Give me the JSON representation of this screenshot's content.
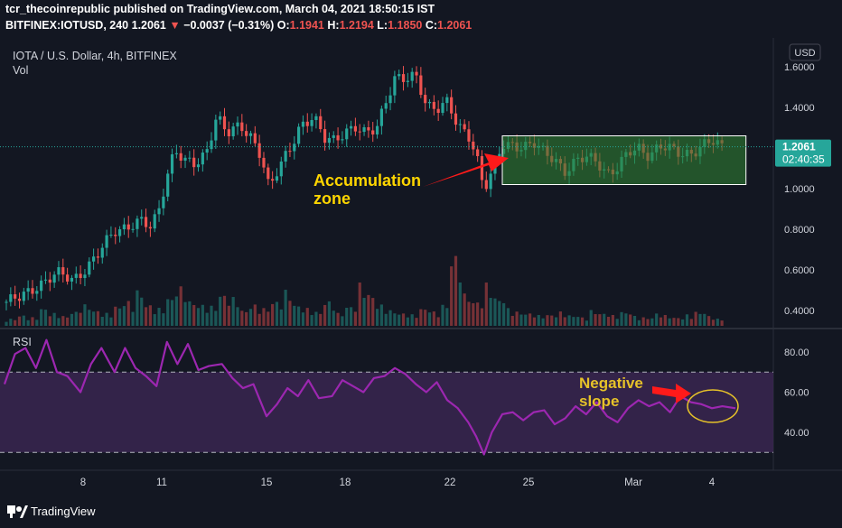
{
  "header": {
    "line1": "tcr_thecoinrepublic published on TradingView.com, March 04, 2021 18:50:15 IST",
    "symbol": "BITFINEX:IOTUSD, 240",
    "last": "1.2061",
    "change_arrow": "▼",
    "change": "−0.0037 (−0.31%)",
    "o_label": "O:",
    "o_val": "1.1941",
    "h_label": "H:",
    "h_val": "1.2194",
    "l_label": "L:",
    "l_val": "1.1850",
    "c_label": "C:",
    "c_val": "1.2061"
  },
  "pane_legend": {
    "title": "IOTA / U.S. Dollar, 4h, BITFINEX",
    "vol": "Vol",
    "rsi": "RSI"
  },
  "price_axis": {
    "currency": "USD",
    "current_price": "1.2061",
    "countdown": "02:40:35"
  },
  "annotations": {
    "accumulation_line1": "Accumulation",
    "accumulation_line2": "zone",
    "negative_line1": "Negative",
    "negative_line2": "slope"
  },
  "brand": {
    "name": "TradingView"
  },
  "colors": {
    "background": "#131722",
    "up": "#26a69a",
    "down": "#ef5350",
    "rsi_line": "#9c27b0",
    "rsi_band": "#3a2650",
    "annotation_text": "#ffd600",
    "arrow": "#ff1a1a",
    "zone_fill": "#2e7d32",
    "zone_border": "#ffffff"
  },
  "chart_data": [
    {
      "type": "candlestick",
      "title": "IOTA / U.S. Dollar, 4h, BITFINEX",
      "ylabel": "USD",
      "y_ticks": [
        1.6,
        1.4,
        1.2,
        1.0,
        0.8,
        0.6,
        0.4
      ],
      "y_tick_labels": [
        "1.6000",
        "1.4000",
        "1.2000",
        "1.0000",
        "0.8000",
        "0.6000",
        "0.4000"
      ],
      "x_ticks": [
        {
          "label": "8",
          "day": 8
        },
        {
          "label": "11",
          "day": 11
        },
        {
          "label": "15",
          "day": 15
        },
        {
          "label": "18",
          "day": 18
        },
        {
          "label": "22",
          "day": 22
        },
        {
          "label": "25",
          "day": 25
        },
        {
          "label": "Mar",
          "day": 29
        },
        {
          "label": "4",
          "day": 32
        }
      ],
      "close_path": [
        [
          5.0,
          0.44
        ],
        [
          5.6,
          0.46
        ],
        [
          6.3,
          0.53
        ],
        [
          7.0,
          0.58
        ],
        [
          7.6,
          0.55
        ],
        [
          8.1,
          0.61
        ],
        [
          8.6,
          0.68
        ],
        [
          9.2,
          0.79
        ],
        [
          9.7,
          0.82
        ],
        [
          10.2,
          0.84
        ],
        [
          10.6,
          0.8
        ],
        [
          10.9,
          0.9
        ],
        [
          11.2,
          1.07
        ],
        [
          11.5,
          1.2
        ],
        [
          11.9,
          1.13
        ],
        [
          12.3,
          1.11
        ],
        [
          12.7,
          1.18
        ],
        [
          13.1,
          1.37
        ],
        [
          13.5,
          1.27
        ],
        [
          14.0,
          1.3
        ],
        [
          14.4,
          1.26
        ],
        [
          14.8,
          1.17
        ],
        [
          15.1,
          1.0
        ],
        [
          15.5,
          1.1
        ],
        [
          15.9,
          1.2
        ],
        [
          16.3,
          1.32
        ],
        [
          16.8,
          1.35
        ],
        [
          17.2,
          1.24
        ],
        [
          17.6,
          1.24
        ],
        [
          18.0,
          1.29
        ],
        [
          18.4,
          1.3
        ],
        [
          18.8,
          1.26
        ],
        [
          19.2,
          1.3
        ],
        [
          19.5,
          1.42
        ],
        [
          19.9,
          1.55
        ],
        [
          20.3,
          1.53
        ],
        [
          20.7,
          1.55
        ],
        [
          21.1,
          1.42
        ],
        [
          21.5,
          1.4
        ],
        [
          21.9,
          1.42
        ],
        [
          22.3,
          1.3
        ],
        [
          22.7,
          1.27
        ],
        [
          23.0,
          1.18
        ],
        [
          23.3,
          1.0
        ],
        [
          23.6,
          1.07
        ],
        [
          24.0,
          1.21
        ],
        [
          24.4,
          1.22
        ],
        [
          24.8,
          1.21
        ],
        [
          25.2,
          1.22
        ],
        [
          25.6,
          1.17
        ],
        [
          26.0,
          1.15
        ],
        [
          26.4,
          1.09
        ],
        [
          26.8,
          1.13
        ],
        [
          27.2,
          1.15
        ],
        [
          27.6,
          1.14
        ],
        [
          28.0,
          1.08
        ],
        [
          28.4,
          1.1
        ],
        [
          28.8,
          1.17
        ],
        [
          29.2,
          1.2
        ],
        [
          29.6,
          1.17
        ],
        [
          30.0,
          1.21
        ],
        [
          30.4,
          1.19
        ],
        [
          30.8,
          1.17
        ],
        [
          31.2,
          1.18
        ],
        [
          31.6,
          1.21
        ],
        [
          32.0,
          1.23
        ],
        [
          32.4,
          1.2
        ],
        [
          32.9,
          1.21
        ]
      ],
      "accumulation_zone": {
        "x_start": 24.0,
        "x_end": 33.3,
        "y_low": 1.02,
        "y_high": 1.26
      },
      "last_price": 1.2061
    },
    {
      "type": "bar",
      "title": "Vol",
      "values": [
        0.1,
        0.15,
        0.12,
        0.25,
        0.18,
        0.14,
        0.2,
        0.3,
        0.22,
        0.18,
        0.28,
        0.35,
        0.5,
        0.3,
        0.25,
        0.4,
        0.55,
        0.35,
        0.3,
        0.28,
        0.45,
        0.4,
        0.22,
        0.3,
        0.25,
        0.35,
        0.5,
        0.3,
        0.25,
        0.2,
        0.35,
        0.18,
        0.28,
        0.6,
        0.45,
        0.3,
        0.22,
        0.18,
        0.16,
        0.25,
        0.2,
        0.3,
        1.0,
        0.45,
        0.35,
        0.6,
        0.4,
        0.25,
        0.2,
        0.18,
        0.15,
        0.16,
        0.2,
        0.15,
        0.12,
        0.22,
        0.18,
        0.15,
        0.2,
        0.14,
        0.12,
        0.18,
        0.15,
        0.12,
        0.16,
        0.2,
        0.14,
        0.1
      ]
    },
    {
      "type": "line",
      "title": "RSI",
      "ylim": [
        27,
        90
      ],
      "y_ticks": [
        80,
        60,
        40
      ],
      "y_tick_labels": [
        "80.00",
        "60.00",
        "40.00"
      ],
      "bands": [
        70,
        30
      ],
      "series": [
        {
          "values": [
            [
              5.0,
              64
            ],
            [
              5.4,
              79
            ],
            [
              5.8,
              82
            ],
            [
              6.2,
              72
            ],
            [
              6.6,
              86
            ],
            [
              7.0,
              70
            ],
            [
              7.4,
              68
            ],
            [
              7.9,
              60
            ],
            [
              8.3,
              74
            ],
            [
              8.7,
              82
            ],
            [
              9.2,
              70
            ],
            [
              9.6,
              82
            ],
            [
              10.0,
              72
            ],
            [
              10.4,
              68
            ],
            [
              10.8,
              63
            ],
            [
              11.2,
              85
            ],
            [
              11.6,
              74
            ],
            [
              12.0,
              84
            ],
            [
              12.4,
              71
            ],
            [
              12.8,
              73
            ],
            [
              13.3,
              74
            ],
            [
              13.7,
              67
            ],
            [
              14.1,
              62
            ],
            [
              14.5,
              64
            ],
            [
              15.0,
              48
            ],
            [
              15.4,
              54
            ],
            [
              15.8,
              62
            ],
            [
              16.2,
              58
            ],
            [
              16.6,
              66
            ],
            [
              17.0,
              57
            ],
            [
              17.5,
              58
            ],
            [
              17.9,
              66
            ],
            [
              18.3,
              63
            ],
            [
              18.7,
              60
            ],
            [
              19.1,
              67
            ],
            [
              19.5,
              68
            ],
            [
              19.9,
              72
            ],
            [
              20.3,
              69
            ],
            [
              20.7,
              64
            ],
            [
              21.1,
              60
            ],
            [
              21.5,
              65
            ],
            [
              21.9,
              56
            ],
            [
              22.3,
              52
            ],
            [
              22.7,
              45
            ],
            [
              23.0,
              38
            ],
            [
              23.3,
              29
            ],
            [
              23.6,
              40
            ],
            [
              24.0,
              49
            ],
            [
              24.4,
              50
            ],
            [
              24.8,
              46
            ],
            [
              25.2,
              50
            ],
            [
              25.6,
              51
            ],
            [
              26.0,
              44
            ],
            [
              26.4,
              47
            ],
            [
              26.8,
              53
            ],
            [
              27.2,
              49
            ],
            [
              27.6,
              55
            ],
            [
              28.0,
              48
            ],
            [
              28.4,
              45
            ],
            [
              28.8,
              52
            ],
            [
              29.2,
              56
            ],
            [
              29.6,
              53
            ],
            [
              30.0,
              55
            ],
            [
              30.4,
              50
            ],
            [
              30.8,
              58
            ],
            [
              31.2,
              55
            ],
            [
              31.6,
              54
            ],
            [
              32.0,
              52
            ],
            [
              32.4,
              53
            ],
            [
              32.9,
              52
            ]
          ]
        }
      ]
    }
  ]
}
